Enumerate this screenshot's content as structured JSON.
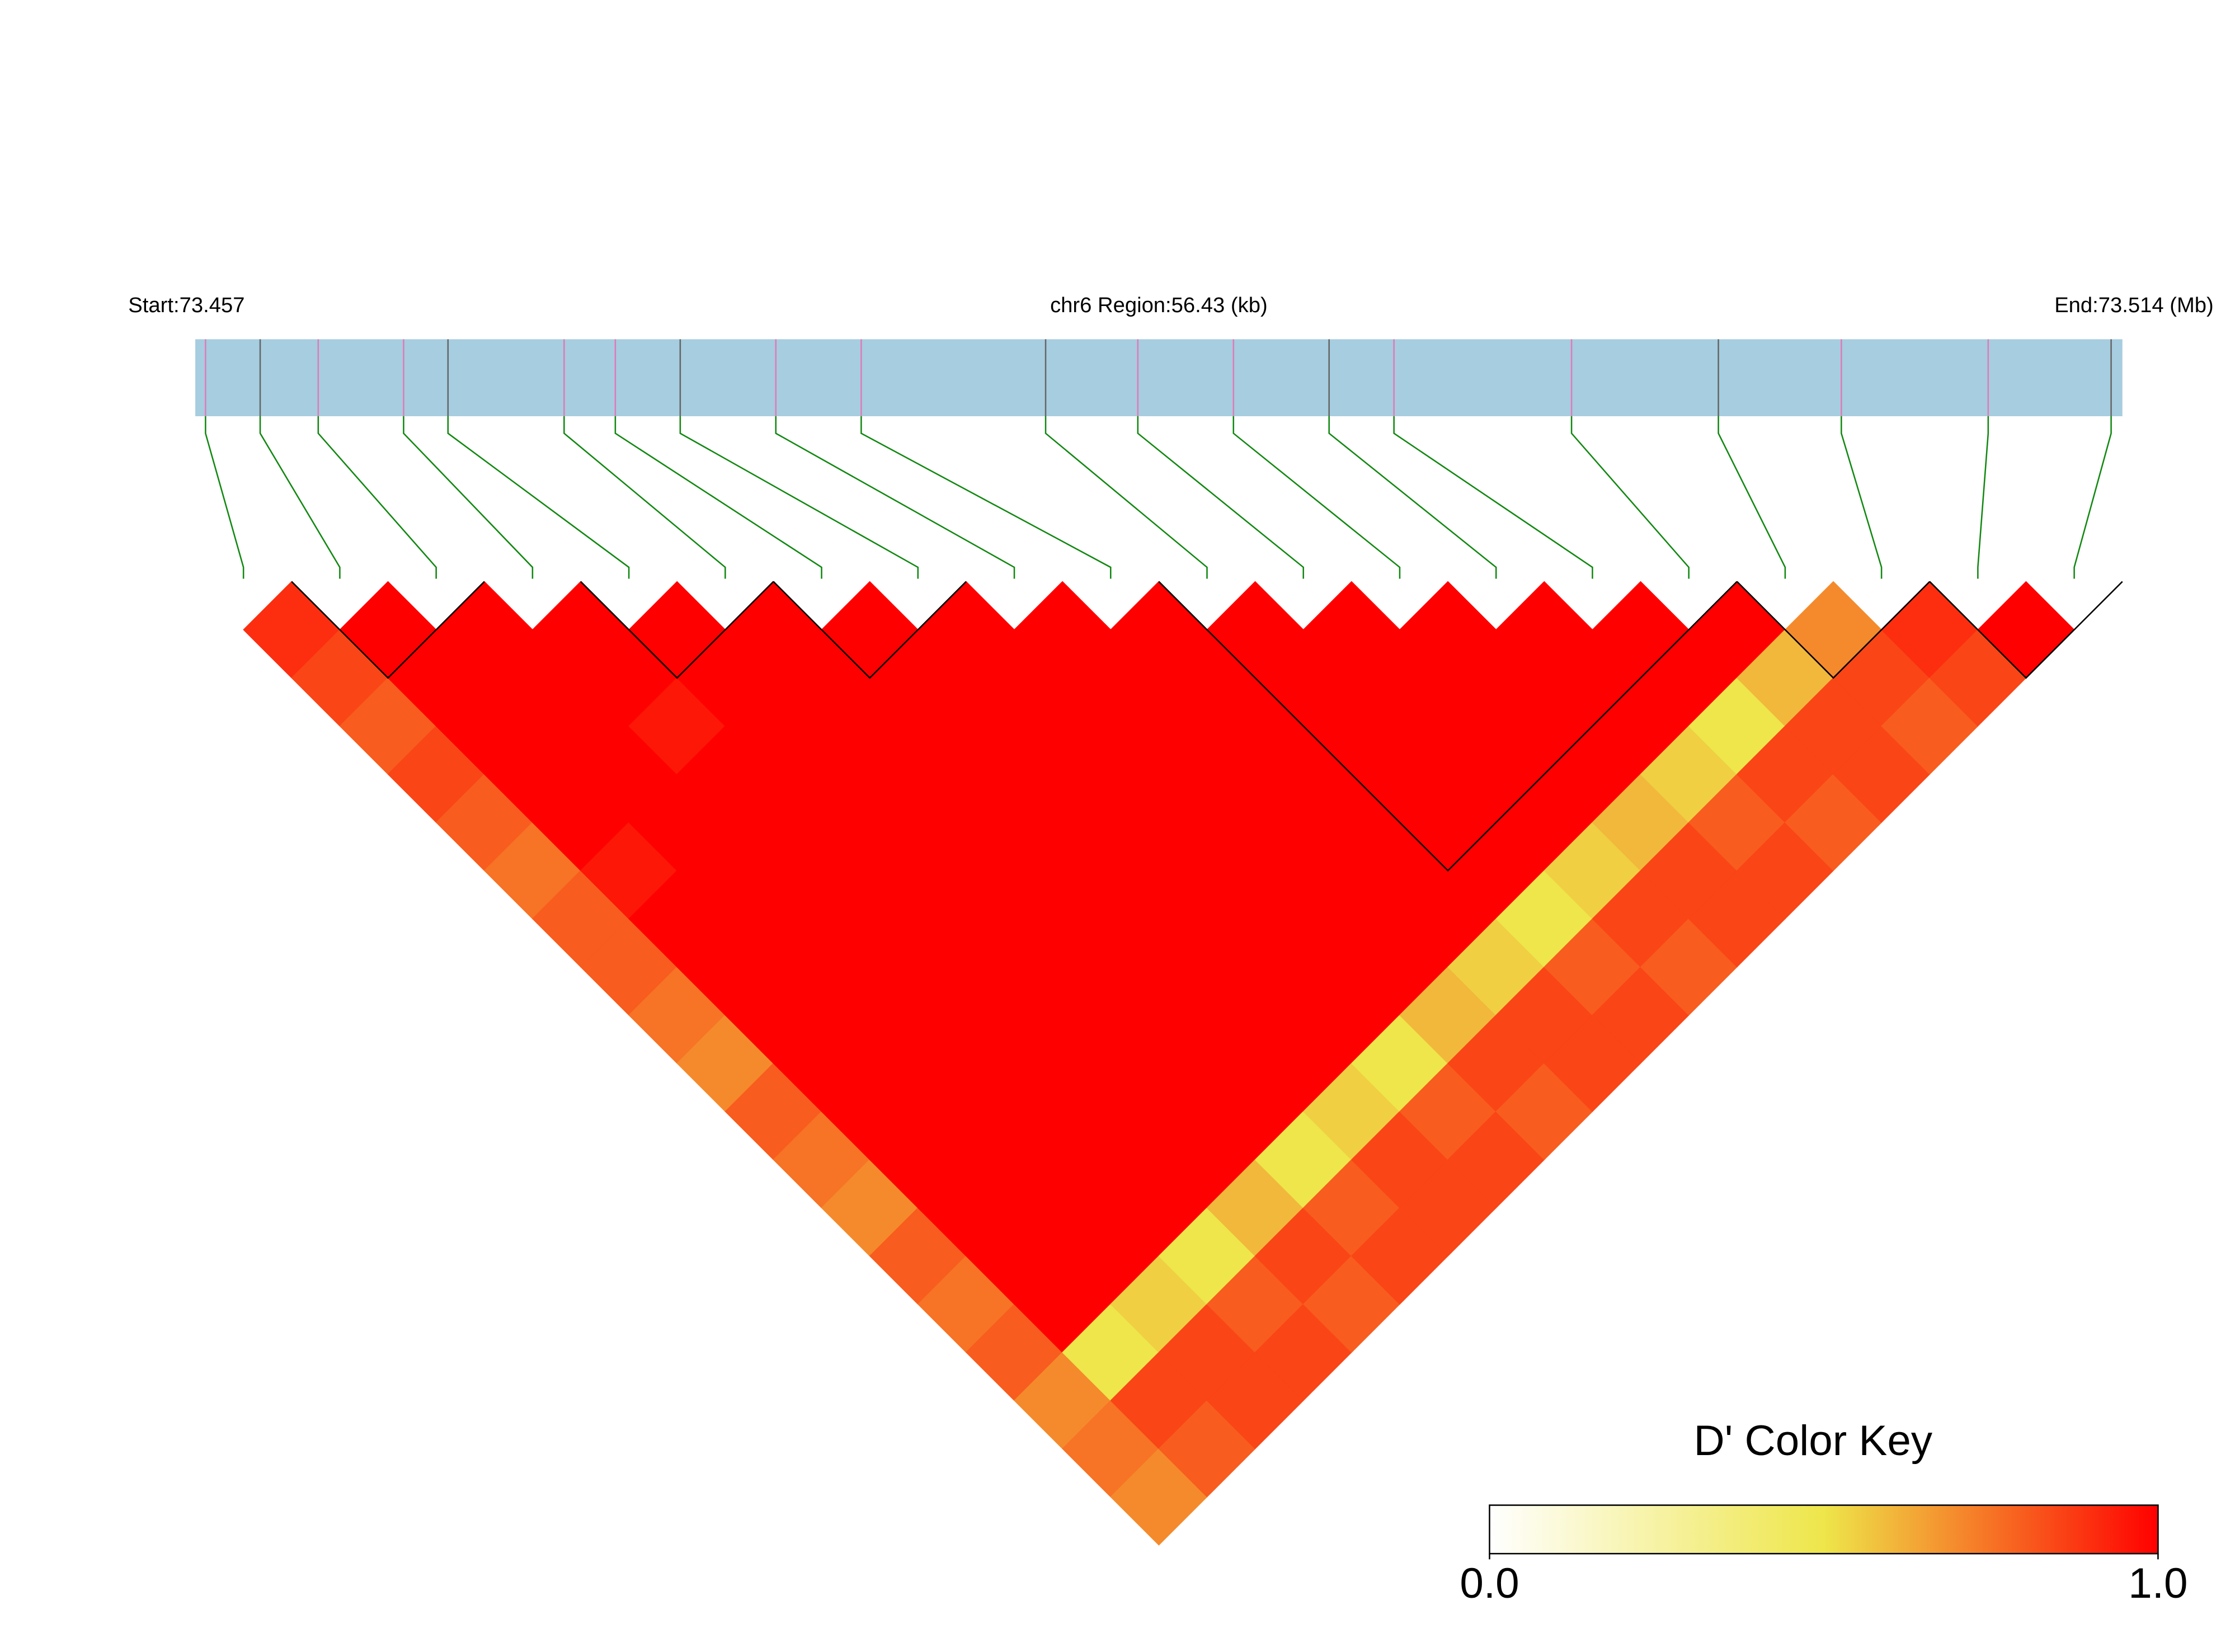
{
  "chart_data": {
    "type": "ld_heatmap",
    "start_label": "Start:73.457",
    "region_label": "chr6 Region:56.43 (kb)",
    "end_label": "End:73.514 (Mb)",
    "xlim": [
      0,
      56.43
    ],
    "snp_positions": [
      0.3,
      1.9,
      3.6,
      6.1,
      7.4,
      10.8,
      12.3,
      14.2,
      17.0,
      19.5,
      24.9,
      27.6,
      30.4,
      33.2,
      35.1,
      40.3,
      44.6,
      48.2,
      52.5,
      56.1
    ],
    "ld_matrix": [
      [
        0.9,
        0.85,
        0.8,
        0.85,
        0.8,
        0.75,
        0.8,
        0.8,
        0.75,
        0.7,
        0.8,
        0.75,
        0.7,
        0.8,
        0.75,
        0.8,
        0.7,
        0.75,
        0.7
      ],
      [
        1,
        1,
        1,
        1,
        1,
        0.95,
        1,
        1,
        1,
        1,
        1,
        1,
        1,
        1,
        1,
        0.5,
        0.85,
        0.8
      ],
      [
        1,
        1,
        1,
        1,
        1,
        1,
        1,
        1,
        1,
        1,
        1,
        1,
        1,
        1,
        0.55,
        0.85,
        0.85
      ],
      [
        1,
        1,
        0.95,
        1,
        1,
        1,
        1,
        1,
        1,
        1,
        1,
        1,
        1,
        0.5,
        0.8,
        0.85
      ],
      [
        1,
        1,
        1,
        1,
        1,
        1,
        1,
        1,
        1,
        1,
        1,
        1,
        0.6,
        0.85,
        0.8
      ],
      [
        1,
        1,
        1,
        1,
        1,
        1,
        1,
        1,
        1,
        1,
        1,
        0.5,
        0.8,
        0.85
      ],
      [
        1,
        1,
        1,
        1,
        1,
        1,
        1,
        1,
        1,
        1,
        0.55,
        0.85,
        0.85
      ],
      [
        1,
        1,
        1,
        1,
        1,
        1,
        1,
        1,
        1,
        0.5,
        0.8,
        0.85
      ],
      [
        1,
        1,
        1,
        1,
        1,
        1,
        1,
        1,
        0.6,
        0.85,
        0.8
      ],
      [
        1,
        1,
        1,
        1,
        1,
        1,
        1,
        0.55,
        0.85,
        0.85
      ],
      [
        1,
        1,
        1,
        1,
        1,
        1,
        0.5,
        0.8,
        0.85
      ],
      [
        1,
        1,
        1,
        1,
        1,
        0.55,
        0.85,
        0.8
      ],
      [
        1,
        1,
        1,
        1,
        0.6,
        0.85,
        0.85
      ],
      [
        1,
        1,
        1,
        0.55,
        0.8,
        0.85
      ],
      [
        1,
        1,
        0.5,
        0.85,
        0.8
      ],
      [
        1,
        0.6,
        0.85,
        0.85
      ],
      [
        0.7,
        0.85,
        0.8
      ],
      [
        0.9,
        0.85
      ],
      [
        1
      ]
    ],
    "blocks": [
      [
        1,
        2
      ],
      [
        4,
        5
      ],
      [
        6,
        7
      ],
      [
        10,
        15
      ],
      [
        16,
        17
      ],
      [
        18,
        19
      ]
    ],
    "colors": [
      "#ffffff",
      "#eee64a",
      "#ff0000"
    ],
    "color_key": {
      "title": "D' Color Key",
      "lim": [
        0,
        1
      ],
      "ticks": [
        {
          "value": 0,
          "label": "0.0"
        },
        {
          "value": 1,
          "label": "1.0"
        }
      ]
    }
  }
}
